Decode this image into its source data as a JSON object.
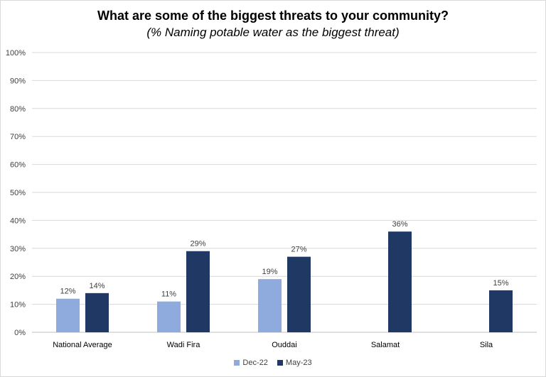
{
  "chart_data": {
    "type": "bar",
    "title": "What are some of the biggest threats to your community?",
    "subtitle": "(% Naming potable water as the biggest threat)",
    "categories": [
      "National Average",
      "Wadi Fira",
      "Ouddai",
      "Salamat",
      "Sila"
    ],
    "series": [
      {
        "name": "Dec-22",
        "color": "#8faadc",
        "values": [
          12,
          11,
          19,
          null,
          null
        ],
        "labels": [
          "12%",
          "11%",
          "19%",
          "",
          ""
        ]
      },
      {
        "name": "May-23",
        "color": "#203864",
        "values": [
          14,
          29,
          27,
          36,
          15
        ],
        "labels": [
          "14%",
          "29%",
          "27%",
          "36%",
          "15%"
        ]
      }
    ],
    "ylim": [
      0,
      100
    ],
    "yticks": [
      "0%",
      "10%",
      "20%",
      "30%",
      "40%",
      "50%",
      "60%",
      "70%",
      "80%",
      "90%",
      "100%"
    ],
    "grid": true,
    "legend_position": "bottom"
  }
}
